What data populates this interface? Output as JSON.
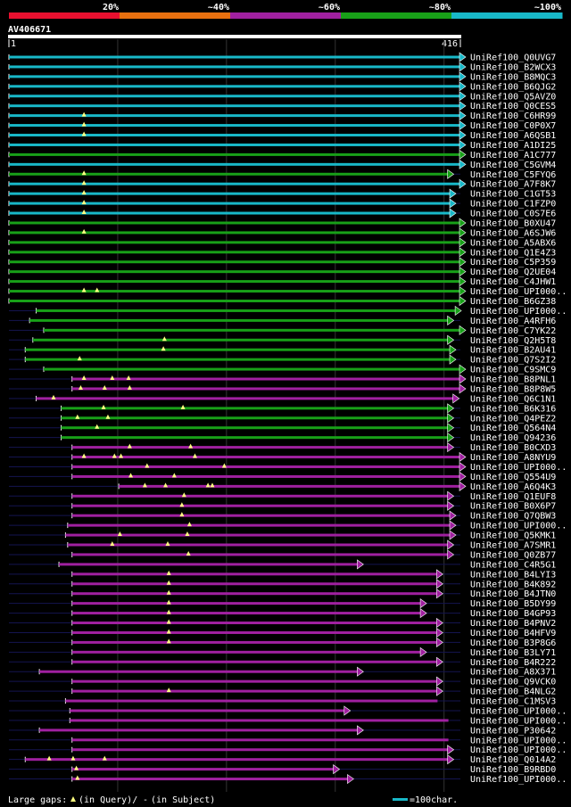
{
  "identity_scale": {
    "labels": [
      "20%",
      "~40%",
      "~60%",
      "~80%",
      "~100%"
    ],
    "colors": [
      "#e8102f",
      "#e8700f",
      "#a020a0",
      "#18a018",
      "#18b8c8"
    ]
  },
  "query": {
    "name": "AV406671",
    "start": "1",
    "end": "416",
    "length": 416
  },
  "legend": {
    "gaps_label": "Large gaps:",
    "query_gap_text": "(in Query)/",
    "subject_gap_dash": "-",
    "subject_gap_text": "(in Subject)",
    "scale_text": "=100char."
  },
  "hits": [
    {
      "id": "UniRef100_Q0UVG7",
      "c": 4,
      "s": 1,
      "e": 416,
      "a": "arrow"
    },
    {
      "id": "UniRef100_B2WCX3",
      "c": 4,
      "s": 1,
      "e": 416,
      "a": "arrow"
    },
    {
      "id": "UniRef100_B8MQC3",
      "c": 4,
      "s": 1,
      "e": 416,
      "a": "arrow"
    },
    {
      "id": "UniRef100_B6QJG2",
      "c": 4,
      "s": 1,
      "e": 416,
      "a": "arrow"
    },
    {
      "id": "UniRef100_Q5AVZ0",
      "c": 4,
      "s": 1,
      "e": 416,
      "a": "arrow"
    },
    {
      "id": "UniRef100_Q0CES5",
      "c": 4,
      "s": 1,
      "e": 416,
      "a": "arrow"
    },
    {
      "id": "UniRef100_C6HR99",
      "c": 4,
      "s": 1,
      "e": 416,
      "a": "arrow",
      "g": [
        70
      ]
    },
    {
      "id": "UniRef100_C0P0X7",
      "c": 4,
      "s": 1,
      "e": 416,
      "a": "arrow",
      "g": [
        70
      ]
    },
    {
      "id": "UniRef100_A6QSB1",
      "c": 4,
      "s": 1,
      "e": 416,
      "a": "arrow",
      "g": [
        70
      ]
    },
    {
      "id": "UniRef100_A1DI25",
      "c": 4,
      "s": 1,
      "e": 416,
      "a": "arrow"
    },
    {
      "id": "UniRef100_A1C777",
      "c": 3,
      "s": 1,
      "e": 416,
      "a": "arrow"
    },
    {
      "id": "UniRef100_C5GVM4",
      "c": 4,
      "s": 1,
      "e": 416,
      "a": "arrow"
    },
    {
      "id": "UniRef100_C5FYQ6",
      "c": 3,
      "s": 1,
      "e": 405,
      "a": "arrow",
      "g": [
        70
      ]
    },
    {
      "id": "UniRef100_A7F8K7",
      "c": 4,
      "s": 1,
      "e": 416,
      "a": "arrow",
      "g": [
        70
      ]
    },
    {
      "id": "UniRef100_C1GT53",
      "c": 4,
      "s": 1,
      "e": 407,
      "a": "arrow",
      "g": [
        70
      ]
    },
    {
      "id": "UniRef100_C1FZP0",
      "c": 4,
      "s": 1,
      "e": 407,
      "a": "arrow",
      "g": [
        70
      ]
    },
    {
      "id": "UniRef100_C0S7E6",
      "c": 4,
      "s": 1,
      "e": 407,
      "a": "arrow",
      "g": [
        70
      ]
    },
    {
      "id": "UniRef100_B0XU47",
      "c": 3,
      "s": 1,
      "e": 416,
      "a": "arrow"
    },
    {
      "id": "UniRef100_A6SJW6",
      "c": 3,
      "s": 1,
      "e": 416,
      "a": "arrow",
      "g": [
        70
      ]
    },
    {
      "id": "UniRef100_A5ABX6",
      "c": 3,
      "s": 1,
      "e": 416,
      "a": "arrow"
    },
    {
      "id": "UniRef100_Q1E4Z3",
      "c": 3,
      "s": 1,
      "e": 416,
      "a": "arrow"
    },
    {
      "id": "UniRef100_C5P359",
      "c": 3,
      "s": 1,
      "e": 416,
      "a": "arrow"
    },
    {
      "id": "UniRef100_Q2UE04",
      "c": 3,
      "s": 1,
      "e": 416,
      "a": "arrow"
    },
    {
      "id": "UniRef100_C4JHW1",
      "c": 3,
      "s": 1,
      "e": 416,
      "a": "arrow"
    },
    {
      "id": "UniRef100_UPI000..",
      "c": 3,
      "s": 1,
      "e": 416,
      "a": "arrow",
      "g": [
        70,
        82
      ]
    },
    {
      "id": "UniRef100_B6GZ38",
      "c": 3,
      "s": 1,
      "e": 416,
      "a": "arrow"
    },
    {
      "id": "UniRef100_UPI000..",
      "c": 3,
      "s": 26,
      "e": 412,
      "a": "arrow"
    },
    {
      "id": "UniRef100_A4RFH6",
      "c": 3,
      "s": 20,
      "e": 405,
      "a": "arrow"
    },
    {
      "id": "UniRef100_C7YK22",
      "c": 3,
      "s": 33,
      "e": 416,
      "a": "arrow"
    },
    {
      "id": "UniRef100_Q2H5T8",
      "c": 3,
      "s": 23,
      "e": 405,
      "a": "arrow",
      "g": [
        144
      ]
    },
    {
      "id": "UniRef100_B2AU41",
      "c": 3,
      "s": 16,
      "e": 407,
      "a": "arrow",
      "g": [
        143
      ]
    },
    {
      "id": "UniRef100_Q7S2I2",
      "c": 3,
      "s": 16,
      "e": 407,
      "a": "arrow",
      "g": [
        66
      ]
    },
    {
      "id": "UniRef100_C9SMC9",
      "c": 3,
      "s": 33,
      "e": 416,
      "a": "arrow"
    },
    {
      "id": "UniRef100_B8PNL1",
      "c": 2,
      "s": 59,
      "e": 416,
      "a": "arrow",
      "g": [
        70,
        96,
        111
      ]
    },
    {
      "id": "UniRef100_B8P8W5",
      "c": 2,
      "s": 59,
      "e": 416,
      "a": "arrow",
      "g": [
        67,
        89,
        112
      ]
    },
    {
      "id": "UniRef100_Q6C1N1",
      "c": 2,
      "s": 26,
      "e": 410,
      "a": "arrow",
      "g": [
        42
      ]
    },
    {
      "id": "UniRef100_B6K316",
      "c": 3,
      "s": 49,
      "e": 405,
      "a": "arrow",
      "g": [
        88,
        161
      ]
    },
    {
      "id": "UniRef100_Q4PEZ2",
      "c": 3,
      "s": 49,
      "e": 405,
      "a": "arrow",
      "g": [
        64,
        92
      ]
    },
    {
      "id": "UniRef100_Q564N4",
      "c": 3,
      "s": 49,
      "e": 405,
      "a": "arrow",
      "g": [
        82
      ]
    },
    {
      "id": "UniRef100_Q94236",
      "c": 3,
      "s": 49,
      "e": 405,
      "a": "arrow"
    },
    {
      "id": "UniRef100_B0CXD3",
      "c": 2,
      "s": 59,
      "e": 405,
      "a": "arrow",
      "g": [
        112,
        168
      ]
    },
    {
      "id": "UniRef100_A8NYU9",
      "c": 2,
      "s": 59,
      "e": 416,
      "a": "arrow",
      "g": [
        70,
        98,
        104,
        172
      ]
    },
    {
      "id": "UniRef100_UPI000..",
      "c": 2,
      "s": 59,
      "e": 416,
      "a": "arrow",
      "g": [
        128,
        199
      ]
    },
    {
      "id": "UniRef100_Q554U9",
      "c": 2,
      "s": 59,
      "e": 416,
      "a": "arrow",
      "g": [
        113,
        153
      ]
    },
    {
      "id": "UniRef100_A6Q4K3",
      "c": 2,
      "s": 102,
      "e": 416,
      "a": "arrow",
      "g": [
        126,
        145,
        184,
        188
      ]
    },
    {
      "id": "UniRef100_Q1EUF8",
      "c": 2,
      "s": 59,
      "e": 405,
      "a": "arrow",
      "g": [
        162
      ]
    },
    {
      "id": "UniRef100_B0X6P7",
      "c": 2,
      "s": 59,
      "e": 405,
      "a": "arrow",
      "g": [
        160
      ]
    },
    {
      "id": "UniRef100_Q7QBW3",
      "c": 2,
      "s": 59,
      "e": 407,
      "a": "arrow",
      "g": [
        160
      ]
    },
    {
      "id": "UniRef100_UPI000..",
      "c": 2,
      "s": 55,
      "e": 407,
      "a": "arrow",
      "g": [
        167
      ]
    },
    {
      "id": "UniRef100_Q5KMK1",
      "c": 2,
      "s": 53,
      "e": 407,
      "a": "arrow",
      "g": [
        103,
        165
      ]
    },
    {
      "id": "UniRef100_A7SMR1",
      "c": 2,
      "s": 55,
      "e": 405,
      "a": "arrow",
      "g": [
        96,
        147
      ]
    },
    {
      "id": "UniRef100_Q0ZB77",
      "c": 2,
      "s": 59,
      "e": 405,
      "a": "arrow",
      "g": [
        166
      ]
    },
    {
      "id": "UniRef100_C4R5G1",
      "c": 2,
      "s": 47,
      "e": 322,
      "a": "arrow"
    },
    {
      "id": "UniRef100_B4LYI3",
      "c": 2,
      "s": 59,
      "e": 395,
      "a": "arrow",
      "g": [
        148
      ]
    },
    {
      "id": "UniRef100_B4K892",
      "c": 2,
      "s": 59,
      "e": 395,
      "a": "arrow",
      "g": [
        148
      ]
    },
    {
      "id": "UniRef100_B4JTN0",
      "c": 2,
      "s": 59,
      "e": 395,
      "a": "arrow",
      "g": [
        148
      ]
    },
    {
      "id": "UniRef100_B5DY99",
      "c": 2,
      "s": 59,
      "e": 380,
      "a": "arrow",
      "g": [
        148
      ]
    },
    {
      "id": "UniRef100_B4GP93",
      "c": 2,
      "s": 59,
      "e": 380,
      "a": "arrow",
      "g": [
        148
      ]
    },
    {
      "id": "UniRef100_B4PNV2",
      "c": 2,
      "s": 59,
      "e": 395,
      "a": "arrow",
      "g": [
        148
      ]
    },
    {
      "id": "UniRef100_B4HFV9",
      "c": 2,
      "s": 59,
      "e": 395,
      "a": "arrow",
      "g": [
        148
      ]
    },
    {
      "id": "UniRef100_B3P8G6",
      "c": 2,
      "s": 59,
      "e": 395,
      "a": "arrow",
      "g": [
        148
      ]
    },
    {
      "id": "UniRef100_B3LY71",
      "c": 2,
      "s": 59,
      "e": 380,
      "a": "arrow"
    },
    {
      "id": "UniRef100_B4R222",
      "c": 2,
      "s": 59,
      "e": 395,
      "a": "arrow"
    },
    {
      "id": "UniRef100_A8X371",
      "c": 2,
      "s": 29,
      "e": 322,
      "a": "arrow"
    },
    {
      "id": "UniRef100_Q9VCK0",
      "c": 2,
      "s": 59,
      "e": 395,
      "a": "arrow"
    },
    {
      "id": "UniRef100_B4NLG2",
      "c": 2,
      "s": 59,
      "e": 395,
      "a": "arrow",
      "g": [
        148
      ]
    },
    {
      "id": "UniRef100_C1MSV3",
      "c": 2,
      "s": 53,
      "e": 395,
      "a": "none"
    },
    {
      "id": "UniRef100_UPI000..",
      "c": 2,
      "s": 57,
      "e": 310,
      "a": "arrow"
    },
    {
      "id": "UniRef100_UPI000..",
      "c": 2,
      "s": 57,
      "e": 405,
      "a": "none"
    },
    {
      "id": "UniRef100_P30642",
      "c": 2,
      "s": 29,
      "e": 322,
      "a": "arrow"
    },
    {
      "id": "UniRef100_UPI000..",
      "c": 2,
      "s": 59,
      "e": 405,
      "a": "none"
    },
    {
      "id": "UniRef100_UPI000..",
      "c": 2,
      "s": 59,
      "e": 405,
      "a": "arrow"
    },
    {
      "id": "UniRef100_Q014A2",
      "c": 2,
      "s": 16,
      "e": 405,
      "a": "arrow",
      "g": [
        38,
        60,
        89
      ]
    },
    {
      "id": "UniRef100_B9RBD0",
      "c": 2,
      "s": 59,
      "e": 300,
      "a": "arrow",
      "g": [
        63
      ]
    },
    {
      "id": "UniRef100_UPI000..",
      "c": 2,
      "s": 59,
      "e": 313,
      "a": "arrow",
      "g": [
        64
      ]
    }
  ]
}
